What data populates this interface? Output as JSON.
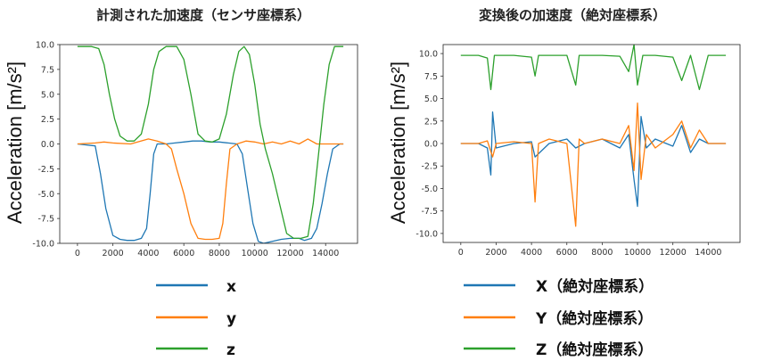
{
  "chart_data": [
    {
      "type": "line",
      "title": "計測された加速度（センサ座標系）",
      "ylabel": "Acceleration [m/s²]",
      "xlim": [
        -1000,
        15800
      ],
      "ylim": [
        -10,
        10
      ],
      "xticks": [
        0,
        2000,
        4000,
        6000,
        8000,
        10000,
        12000,
        14000
      ],
      "yticks": [
        10.0,
        7.5,
        5.0,
        2.5,
        0.0,
        -2.5,
        -5.0,
        -7.5,
        -10.0
      ],
      "series": [
        {
          "name": "x",
          "color": "#1f77b4",
          "points": [
            [
              0,
              0
            ],
            [
              1000,
              -0.2
            ],
            [
              1300,
              -3
            ],
            [
              1600,
              -6.5
            ],
            [
              2000,
              -9.2
            ],
            [
              2400,
              -9.6
            ],
            [
              2800,
              -9.7
            ],
            [
              3200,
              -9.7
            ],
            [
              3600,
              -9.5
            ],
            [
              3900,
              -8.5
            ],
            [
              4100,
              -5
            ],
            [
              4300,
              -1
            ],
            [
              4500,
              0
            ],
            [
              5000,
              0
            ],
            [
              5500,
              0.1
            ],
            [
              6000,
              0.2
            ],
            [
              6500,
              0.3
            ],
            [
              7000,
              0.3
            ],
            [
              7500,
              0.2
            ],
            [
              8000,
              0.2
            ],
            [
              8500,
              0.1
            ],
            [
              9000,
              0
            ],
            [
              9300,
              -1
            ],
            [
              9600,
              -4.5
            ],
            [
              9900,
              -8
            ],
            [
              10200,
              -9.8
            ],
            [
              10500,
              -10
            ],
            [
              11000,
              -9.8
            ],
            [
              11500,
              -9.6
            ],
            [
              12000,
              -9.5
            ],
            [
              12500,
              -9.5
            ],
            [
              12800,
              -9.7
            ],
            [
              13200,
              -9.5
            ],
            [
              13500,
              -8.5
            ],
            [
              13800,
              -6
            ],
            [
              14100,
              -3
            ],
            [
              14400,
              -0.5
            ],
            [
              14800,
              0
            ],
            [
              15000,
              0
            ]
          ]
        },
        {
          "name": "y",
          "color": "#ff7f0e",
          "points": [
            [
              0,
              0
            ],
            [
              1000,
              0.1
            ],
            [
              1500,
              0.2
            ],
            [
              2000,
              0.1
            ],
            [
              3000,
              0
            ],
            [
              4000,
              0.5
            ],
            [
              4500,
              0.3
            ],
            [
              5000,
              0
            ],
            [
              5300,
              -0.5
            ],
            [
              5600,
              -2.5
            ],
            [
              6000,
              -5
            ],
            [
              6400,
              -8
            ],
            [
              6800,
              -9.5
            ],
            [
              7200,
              -9.6
            ],
            [
              7600,
              -9.6
            ],
            [
              8000,
              -9.5
            ],
            [
              8200,
              -8
            ],
            [
              8400,
              -4
            ],
            [
              8600,
              -0.5
            ],
            [
              9000,
              0
            ],
            [
              9500,
              0.3
            ],
            [
              10000,
              0.2
            ],
            [
              10500,
              0
            ],
            [
              11000,
              0.2
            ],
            [
              11500,
              0
            ],
            [
              12000,
              0.3
            ],
            [
              12500,
              0
            ],
            [
              13000,
              0.5
            ],
            [
              13500,
              0
            ],
            [
              14000,
              0
            ],
            [
              15000,
              0
            ]
          ]
        },
        {
          "name": "z",
          "color": "#2ca02c",
          "points": [
            [
              0,
              9.8
            ],
            [
              800,
              9.8
            ],
            [
              1200,
              9.6
            ],
            [
              1500,
              8
            ],
            [
              1800,
              5
            ],
            [
              2100,
              2.5
            ],
            [
              2400,
              0.8
            ],
            [
              2800,
              0.3
            ],
            [
              3200,
              0.3
            ],
            [
              3600,
              1
            ],
            [
              4000,
              4
            ],
            [
              4300,
              7.5
            ],
            [
              4600,
              9.3
            ],
            [
              5000,
              9.8
            ],
            [
              5600,
              9.8
            ],
            [
              6000,
              8.5
            ],
            [
              6400,
              5
            ],
            [
              6800,
              1
            ],
            [
              7200,
              0.3
            ],
            [
              7600,
              0.2
            ],
            [
              8000,
              0.5
            ],
            [
              8400,
              3
            ],
            [
              8800,
              7
            ],
            [
              9100,
              9.3
            ],
            [
              9400,
              9.8
            ],
            [
              9700,
              9
            ],
            [
              10000,
              6
            ],
            [
              10300,
              2
            ],
            [
              10600,
              -0.5
            ],
            [
              11000,
              -3
            ],
            [
              11400,
              -6
            ],
            [
              11800,
              -9
            ],
            [
              12200,
              -9.5
            ],
            [
              12600,
              -9.5
            ],
            [
              13000,
              -9.3
            ],
            [
              13300,
              -6
            ],
            [
              13600,
              -1
            ],
            [
              13900,
              4
            ],
            [
              14200,
              8
            ],
            [
              14500,
              9.8
            ],
            [
              15000,
              9.8
            ]
          ]
        }
      ]
    },
    {
      "type": "line",
      "title": "変換後の加速度（絶対座標系）",
      "ylabel": "Acceleration [m/s²]",
      "xlim": [
        -1000,
        15800
      ],
      "ylim": [
        -11,
        11
      ],
      "xticks": [
        0,
        2000,
        4000,
        6000,
        8000,
        10000,
        12000,
        14000
      ],
      "yticks": [
        10.0,
        7.5,
        5.0,
        2.5,
        0.0,
        -2.5,
        -5.0,
        -7.5,
        -10.0
      ],
      "series": [
        {
          "name": "X（絶対座標系）",
          "color": "#1f77b4",
          "points": [
            [
              0,
              0
            ],
            [
              1000,
              0
            ],
            [
              1500,
              -0.5
            ],
            [
              1700,
              -3.5
            ],
            [
              1800,
              3.5
            ],
            [
              2000,
              -0.5
            ],
            [
              3000,
              0
            ],
            [
              4000,
              0.2
            ],
            [
              4200,
              -1.5
            ],
            [
              5000,
              0
            ],
            [
              6000,
              0.5
            ],
            [
              6500,
              -0.5
            ],
            [
              7000,
              0
            ],
            [
              8000,
              0.5
            ],
            [
              9000,
              -0.5
            ],
            [
              9500,
              1
            ],
            [
              9800,
              -4
            ],
            [
              10000,
              -7
            ],
            [
              10200,
              3
            ],
            [
              10500,
              -0.5
            ],
            [
              11000,
              0.5
            ],
            [
              12000,
              -0.3
            ],
            [
              12500,
              2
            ],
            [
              13000,
              -1
            ],
            [
              13500,
              0.5
            ],
            [
              14000,
              0
            ],
            [
              15000,
              0
            ]
          ]
        },
        {
          "name": "Y（絶対座標系）",
          "color": "#ff7f0e",
          "points": [
            [
              0,
              0
            ],
            [
              1000,
              0
            ],
            [
              1500,
              0.3
            ],
            [
              1800,
              -1.5
            ],
            [
              2000,
              0
            ],
            [
              3000,
              0.2
            ],
            [
              4000,
              0
            ],
            [
              4200,
              -6.5
            ],
            [
              4400,
              0
            ],
            [
              5000,
              0.5
            ],
            [
              6000,
              0
            ],
            [
              6500,
              -9.2
            ],
            [
              6700,
              0.5
            ],
            [
              7000,
              0
            ],
            [
              8000,
              0.5
            ],
            [
              9000,
              0
            ],
            [
              9500,
              2
            ],
            [
              9800,
              -3
            ],
            [
              10000,
              4.5
            ],
            [
              10200,
              -4
            ],
            [
              10500,
              1
            ],
            [
              11000,
              -0.5
            ],
            [
              12000,
              1
            ],
            [
              12500,
              2.5
            ],
            [
              13000,
              -0.5
            ],
            [
              13500,
              1.5
            ],
            [
              14000,
              0
            ],
            [
              15000,
              0
            ]
          ]
        },
        {
          "name": "Z（絶対座標系）",
          "color": "#2ca02c",
          "points": [
            [
              0,
              9.8
            ],
            [
              1000,
              9.8
            ],
            [
              1500,
              9.5
            ],
            [
              1700,
              6
            ],
            [
              1900,
              9.8
            ],
            [
              3000,
              9.8
            ],
            [
              4000,
              9.6
            ],
            [
              4200,
              7.5
            ],
            [
              4400,
              9.8
            ],
            [
              5000,
              9.8
            ],
            [
              6000,
              9.8
            ],
            [
              6500,
              6.5
            ],
            [
              6700,
              9.8
            ],
            [
              7000,
              9.8
            ],
            [
              8000,
              9.8
            ],
            [
              9000,
              9.7
            ],
            [
              9500,
              8
            ],
            [
              9800,
              11
            ],
            [
              10000,
              6.5
            ],
            [
              10300,
              9.8
            ],
            [
              11000,
              9.8
            ],
            [
              12000,
              9.6
            ],
            [
              12500,
              7
            ],
            [
              13000,
              9.8
            ],
            [
              13500,
              6
            ],
            [
              14000,
              9.8
            ],
            [
              15000,
              9.8
            ]
          ]
        }
      ]
    }
  ],
  "legend_left": [
    "x",
    "y",
    "z"
  ],
  "legend_right": [
    "X（絶対座標系）",
    "Y（絶対座標系）",
    "Z（絶対座標系）"
  ]
}
